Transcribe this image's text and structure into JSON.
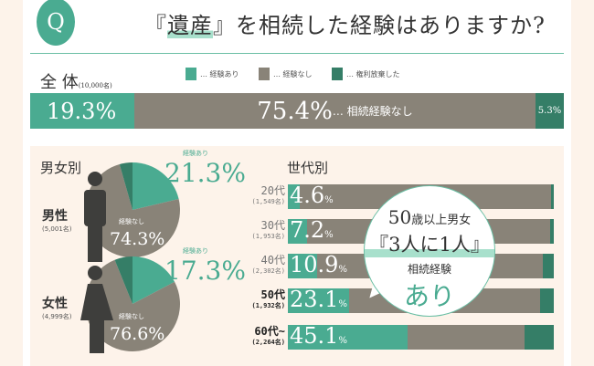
{
  "title": {
    "q": "Q",
    "pre": "『",
    "hl": "遺産",
    "post": "』を相続した経験はありますか?"
  },
  "colors": {
    "yes": "#4aab91",
    "no": "#898378",
    "renounced": "#357e67"
  },
  "overall": {
    "label": "全 体",
    "n": "(10,000名)",
    "yes": "19.3%",
    "no": "75.4%",
    "no_note": "… 相続経験なし",
    "renounced": "5.3%"
  },
  "legend": [
    "… 経験あり",
    "… 経験なし",
    "… 権利放棄した"
  ],
  "chart_data": [
    {
      "type": "bar",
      "title": "全体",
      "categories": [
        "全体"
      ],
      "series": [
        {
          "name": "経験あり",
          "values": [
            19.3
          ]
        },
        {
          "name": "経験なし",
          "values": [
            75.4
          ]
        },
        {
          "name": "権利放棄した",
          "values": [
            5.3
          ]
        }
      ],
      "unit": "%"
    },
    {
      "type": "pie",
      "title": "男女別",
      "items": [
        {
          "label": "男性",
          "n": "(5,001名)",
          "yes": 21.3,
          "no": 74.3,
          "renounced": 4.4,
          "yes_text": "21.3%",
          "no_text": "74.3%"
        },
        {
          "label": "女性",
          "n": "(4,999名)",
          "yes": 17.3,
          "no": 76.6,
          "renounced": 6.1,
          "yes_text": "17.3%",
          "no_text": "76.6%"
        }
      ],
      "yes_label": "経験あり",
      "no_label": "経験なし"
    },
    {
      "type": "bar",
      "title": "世代別",
      "categories": [
        "20代",
        "30代",
        "40代",
        "50代",
        "60代~"
      ],
      "n": [
        "(1,549名)",
        "(1,953名)",
        "(2,302名)",
        "(1,932名)",
        "(2,264名)"
      ],
      "yes_text": [
        "4.6",
        "7.2",
        "10.9",
        "23.1",
        "45.1"
      ],
      "series": [
        {
          "name": "経験あり",
          "values": [
            4.6,
            7.2,
            10.9,
            23.1,
            45.1
          ]
        },
        {
          "name": "権利放棄した",
          "values": [
            1,
            1.5,
            4,
            5,
            11
          ]
        }
      ],
      "unit": "%"
    }
  ],
  "gender_title": "男女別",
  "age_title": "世代別",
  "pct": "%",
  "bubble": {
    "l1": "50",
    "l1b": "歳以上男女",
    "l2": "『3人に1人』",
    "l3": "相続経験",
    "l4": "あり"
  }
}
